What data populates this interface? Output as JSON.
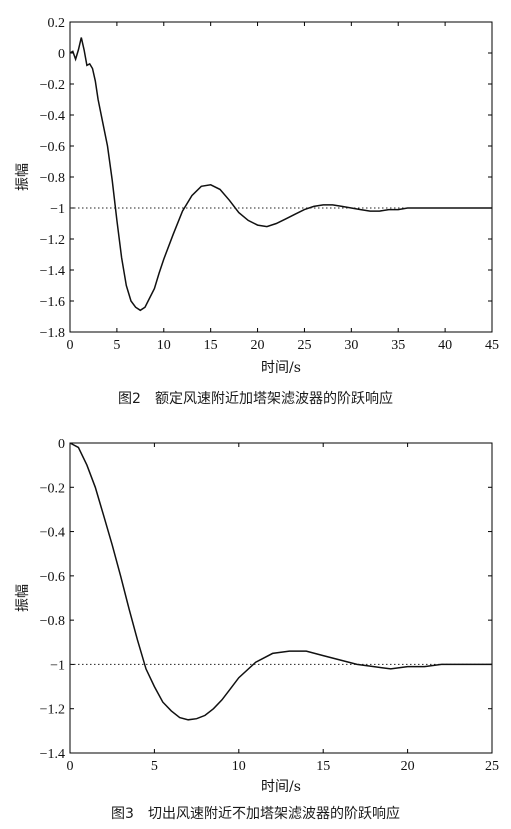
{
  "chart_data": [
    {
      "type": "line",
      "title": "",
      "xlabel": "时间/s",
      "ylabel": "振幅",
      "caption": "图2　额定风速附近加塔架滤波器的阶跃响应",
      "xlim": [
        0,
        45
      ],
      "ylim": [
        -1.8,
        0.2
      ],
      "xticks": [
        0,
        5,
        10,
        15,
        20,
        25,
        30,
        35,
        40,
        45
      ],
      "yticks": [
        0.2,
        0,
        -0.2,
        -0.4,
        -0.6,
        -0.8,
        -1,
        -1.2,
        -1.4,
        -1.6,
        -1.8
      ],
      "ytick_labels": [
        "0.2",
        "0",
        "−0.2",
        "−0.4",
        "−0.6",
        "−0.8",
        "−1",
        "−1.2",
        "−1.4",
        "−1.6",
        "−1.8"
      ],
      "grid": false,
      "reference_line": {
        "y": -1,
        "style": "dotted"
      },
      "series": [
        {
          "x": [
            0,
            0.3,
            0.6,
            0.9,
            1.2,
            1.5,
            1.8,
            2.1,
            2.4,
            2.7,
            3.0,
            3.5,
            4.0,
            4.5,
            5.0,
            5.5,
            6.0,
            6.5,
            7.0,
            7.5,
            8.0,
            8.5,
            9.0,
            9.5,
            10.0,
            11.0,
            12.0,
            13.0,
            14.0,
            15.0,
            16.0,
            17.0,
            18.0,
            19.0,
            20.0,
            21.0,
            22.0,
            23.0,
            24.0,
            25.0,
            26.0,
            27.0,
            28.0,
            29.0,
            30.0,
            31.0,
            32.0,
            33.0,
            34.0,
            35.0,
            36.0,
            37.0,
            38.0,
            39.0,
            40.0,
            42.0,
            45.0
          ],
          "y": [
            0,
            0.01,
            -0.04,
            0.02,
            0.1,
            0.02,
            -0.08,
            -0.07,
            -0.1,
            -0.18,
            -0.3,
            -0.45,
            -0.6,
            -0.82,
            -1.08,
            -1.32,
            -1.5,
            -1.6,
            -1.64,
            -1.66,
            -1.64,
            -1.58,
            -1.52,
            -1.42,
            -1.33,
            -1.17,
            -1.02,
            -0.92,
            -0.86,
            -0.85,
            -0.88,
            -0.95,
            -1.03,
            -1.08,
            -1.11,
            -1.12,
            -1.1,
            -1.07,
            -1.04,
            -1.01,
            -0.99,
            -0.98,
            -0.98,
            -0.99,
            -1.0,
            -1.01,
            -1.02,
            -1.02,
            -1.01,
            -1.01,
            -1.0,
            -1.0,
            -1.0,
            -1.0,
            -1.0,
            -1.0,
            -1.0
          ]
        }
      ]
    },
    {
      "type": "line",
      "title": "",
      "xlabel": "时间/s",
      "ylabel": "振幅",
      "caption": "图3　切出风速附近不加塔架滤波器的阶跃响应",
      "xlim": [
        0,
        25
      ],
      "ylim": [
        -1.4,
        0
      ],
      "xticks": [
        0,
        5,
        10,
        15,
        20,
        25
      ],
      "yticks": [
        0,
        -0.2,
        -0.4,
        -0.6,
        -0.8,
        -1,
        -1.2,
        -1.4
      ],
      "ytick_labels": [
        "0",
        "−0.2",
        "−0.4",
        "−0.6",
        "−0.8",
        "−1",
        "−1.2",
        "−1.4"
      ],
      "grid": false,
      "reference_line": {
        "y": -1,
        "style": "dotted"
      },
      "series": [
        {
          "x": [
            0,
            0.5,
            1.0,
            1.5,
            2.0,
            2.5,
            3.0,
            3.5,
            4.0,
            4.5,
            5.0,
            5.5,
            6.0,
            6.5,
            7.0,
            7.5,
            8.0,
            8.5,
            9.0,
            9.5,
            10.0,
            11.0,
            12.0,
            13.0,
            14.0,
            15.0,
            16.0,
            17.0,
            18.0,
            19.0,
            20.0,
            21.0,
            22.0,
            23.0,
            24.0,
            25.0
          ],
          "y": [
            0,
            -0.02,
            -0.1,
            -0.2,
            -0.33,
            -0.46,
            -0.6,
            -0.75,
            -0.89,
            -1.02,
            -1.1,
            -1.17,
            -1.21,
            -1.24,
            -1.25,
            -1.245,
            -1.23,
            -1.2,
            -1.16,
            -1.11,
            -1.06,
            -0.99,
            -0.95,
            -0.94,
            -0.94,
            -0.96,
            -0.98,
            -1.0,
            -1.01,
            -1.02,
            -1.01,
            -1.01,
            -1.0,
            -1.0,
            -1.0,
            -1.0
          ]
        }
      ]
    }
  ]
}
